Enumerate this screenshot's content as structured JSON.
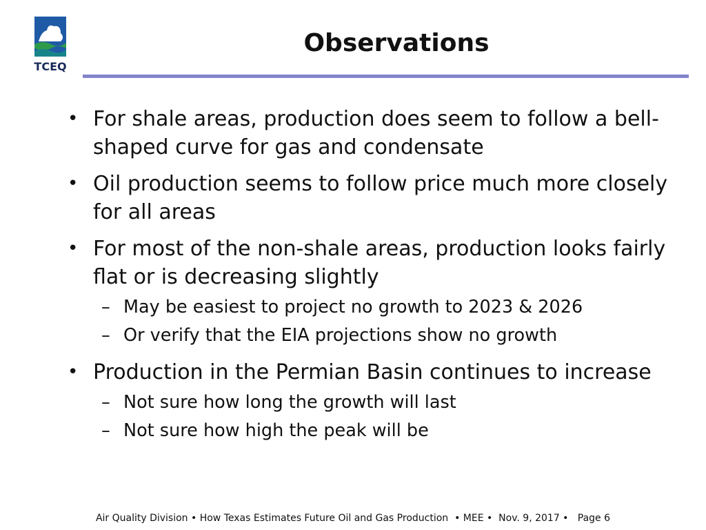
{
  "header": {
    "title": "Observations",
    "logo_text": "TCEQ"
  },
  "bullets": [
    {
      "text": "For shale areas, production does seem to follow a bell-shaped curve for gas and condensate",
      "sub": []
    },
    {
      "text": "Oil production seems to follow price much more closely for all areas",
      "sub": []
    },
    {
      "text": "For most of the non-shale areas, production looks fairly flat or is decreasing slightly",
      "sub": [
        "May be easiest to project no growth to 2023 & 2026",
        "Or verify that the EIA projections show no growth"
      ]
    },
    {
      "text": "Production in the Permian Basin continues to increase",
      "sub": [
        "Not sure how long the growth will last",
        "Not sure how high the peak will be"
      ]
    }
  ],
  "footer": "Air Quality Division • How Texas Estimates Future Oil and Gas Production  • MEE •  Nov. 9, 2017 •   Page 6"
}
